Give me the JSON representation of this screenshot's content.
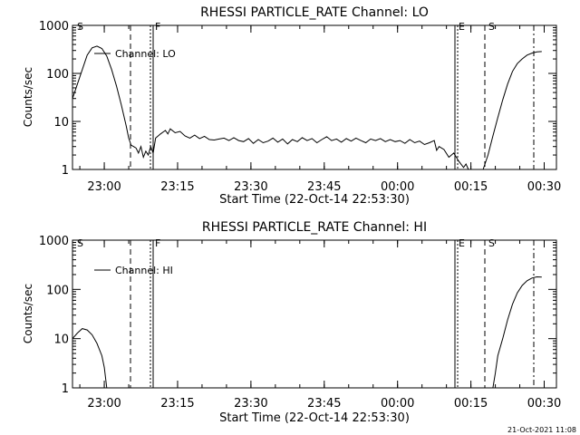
{
  "stamp": "21-Oct-2021 11:08",
  "chart_data": [
    {
      "type": "line",
      "title": "RHESSI PARTICLE_RATE Channel: LO",
      "xlabel": "Start Time (22-Oct-14 22:53:30)",
      "ylabel": "Counts/sec",
      "yscale": "log",
      "ylim": [
        1,
        1000
      ],
      "xlim_minutes_after_start": [
        0,
        99
      ],
      "x_ticks": [
        "23:00",
        "23:15",
        "23:30",
        "23:45",
        "00:00",
        "00:15",
        "00:30"
      ],
      "y_ticks": [
        "1",
        "10",
        "100",
        "1000"
      ],
      "legend": "Channel: LO",
      "flag_labels": [
        "S",
        "F",
        "E",
        "S"
      ],
      "series": [
        {
          "name": "Channel: LO",
          "points": [
            [
              0.0,
              30
            ],
            [
              1.0,
              60
            ],
            [
              2.0,
              120
            ],
            [
              3.0,
              240
            ],
            [
              4.0,
              340
            ],
            [
              5.0,
              370
            ],
            [
              6.0,
              330
            ],
            [
              7.0,
              230
            ],
            [
              8.0,
              120
            ],
            [
              9.0,
              55
            ],
            [
              10.0,
              22
            ],
            [
              11.0,
              8
            ],
            [
              11.5,
              4.5
            ],
            [
              12.0,
              3.2
            ],
            [
              12.5,
              3.0
            ],
            [
              13.0,
              2.8
            ],
            [
              13.5,
              2.2
            ],
            [
              14.0,
              3.0
            ],
            [
              14.5,
              1.8
            ],
            [
              15.0,
              2.4
            ],
            [
              15.5,
              2.0
            ],
            [
              16.0,
              3.0
            ],
            [
              16.5,
              2.2
            ],
            [
              17.0,
              4.5
            ],
            [
              18.0,
              5.5
            ],
            [
              19.0,
              6.5
            ],
            [
              19.5,
              5.5
            ],
            [
              20.0,
              7.0
            ],
            [
              21.0,
              5.8
            ],
            [
              22.0,
              6.2
            ],
            [
              23.0,
              5.0
            ],
            [
              24.0,
              4.5
            ],
            [
              25.0,
              5.2
            ],
            [
              26.0,
              4.4
            ],
            [
              27.0,
              4.9
            ],
            [
              28.0,
              4.2
            ],
            [
              29.0,
              4.1
            ],
            [
              30.0,
              4.3
            ],
            [
              31.0,
              4.5
            ],
            [
              32.0,
              4.0
            ],
            [
              33.0,
              4.6
            ],
            [
              34.0,
              4.0
            ],
            [
              35.0,
              3.8
            ],
            [
              36.0,
              4.4
            ],
            [
              37.0,
              3.5
            ],
            [
              38.0,
              4.2
            ],
            [
              39.0,
              3.6
            ],
            [
              40.0,
              3.9
            ],
            [
              41.0,
              4.5
            ],
            [
              42.0,
              3.7
            ],
            [
              43.0,
              4.3
            ],
            [
              44.0,
              3.4
            ],
            [
              45.0,
              4.2
            ],
            [
              46.0,
              3.8
            ],
            [
              47.0,
              4.6
            ],
            [
              48.0,
              4.0
            ],
            [
              49.0,
              4.4
            ],
            [
              50.0,
              3.6
            ],
            [
              51.0,
              4.2
            ],
            [
              52.0,
              4.8
            ],
            [
              53.0,
              4.0
            ],
            [
              54.0,
              4.3
            ],
            [
              55.0,
              3.7
            ],
            [
              56.0,
              4.4
            ],
            [
              57.0,
              3.9
            ],
            [
              58.0,
              4.5
            ],
            [
              59.0,
              4.0
            ],
            [
              60.0,
              3.6
            ],
            [
              61.0,
              4.3
            ],
            [
              62.0,
              4.0
            ],
            [
              63.0,
              4.4
            ],
            [
              64.0,
              3.8
            ],
            [
              65.0,
              4.2
            ],
            [
              66.0,
              3.8
            ],
            [
              67.0,
              4.0
            ],
            [
              68.0,
              3.5
            ],
            [
              69.0,
              4.2
            ],
            [
              70.0,
              3.6
            ],
            [
              71.0,
              3.9
            ],
            [
              72.0,
              3.3
            ],
            [
              73.0,
              3.6
            ],
            [
              74.0,
              4.0
            ],
            [
              74.5,
              2.5
            ],
            [
              75.0,
              3.0
            ],
            [
              76.0,
              2.6
            ],
            [
              77.0,
              1.8
            ],
            [
              78.0,
              2.2
            ],
            [
              79.0,
              1.5
            ],
            [
              80.0,
              1.1
            ],
            [
              80.5,
              1.3
            ],
            [
              81.0,
              1.0
            ]
          ]
        },
        {
          "name": "Channel: LO",
          "points": [
            [
              84.0,
              1.0
            ],
            [
              85.0,
              2.0
            ],
            [
              86.0,
              5.0
            ],
            [
              87.0,
              12
            ],
            [
              88.0,
              28
            ],
            [
              89.0,
              60
            ],
            [
              90.0,
              110
            ],
            [
              91.0,
              160
            ],
            [
              92.0,
              200
            ],
            [
              93.0,
              240
            ],
            [
              94.0,
              265
            ],
            [
              95.0,
              280
            ],
            [
              96.0,
              285
            ]
          ]
        }
      ]
    },
    {
      "type": "line",
      "title": "RHESSI PARTICLE_RATE Channel: HI",
      "xlabel": "Start Time (22-Oct-14 22:53:30)",
      "ylabel": "Counts/sec",
      "yscale": "log",
      "ylim": [
        1,
        1000
      ],
      "xlim_minutes_after_start": [
        0,
        99
      ],
      "x_ticks": [
        "23:00",
        "23:15",
        "23:30",
        "23:45",
        "00:00",
        "00:15",
        "00:30"
      ],
      "y_ticks": [
        "1",
        "10",
        "100",
        "1000"
      ],
      "legend": "Channel: HI",
      "flag_labels": [
        "S",
        "F",
        "E",
        "S"
      ],
      "series": [
        {
          "name": "Channel: HI",
          "points": [
            [
              0.0,
              10
            ],
            [
              1.0,
              13
            ],
            [
              2.0,
              16
            ],
            [
              3.0,
              15
            ],
            [
              4.0,
              12
            ],
            [
              5.0,
              8
            ],
            [
              6.0,
              4.5
            ],
            [
              6.5,
              2.6
            ],
            [
              7.0,
              1.0
            ]
          ]
        },
        {
          "name": "Channel: HI",
          "points": [
            [
              86.0,
              1.0
            ],
            [
              86.5,
              2.0
            ],
            [
              87.0,
              4.5
            ],
            [
              88.0,
              10
            ],
            [
              89.0,
              24
            ],
            [
              90.0,
              50
            ],
            [
              91.0,
              85
            ],
            [
              92.0,
              120
            ],
            [
              93.0,
              150
            ],
            [
              94.0,
              170
            ],
            [
              95.0,
              180
            ],
            [
              96.0,
              178
            ]
          ]
        }
      ]
    }
  ]
}
